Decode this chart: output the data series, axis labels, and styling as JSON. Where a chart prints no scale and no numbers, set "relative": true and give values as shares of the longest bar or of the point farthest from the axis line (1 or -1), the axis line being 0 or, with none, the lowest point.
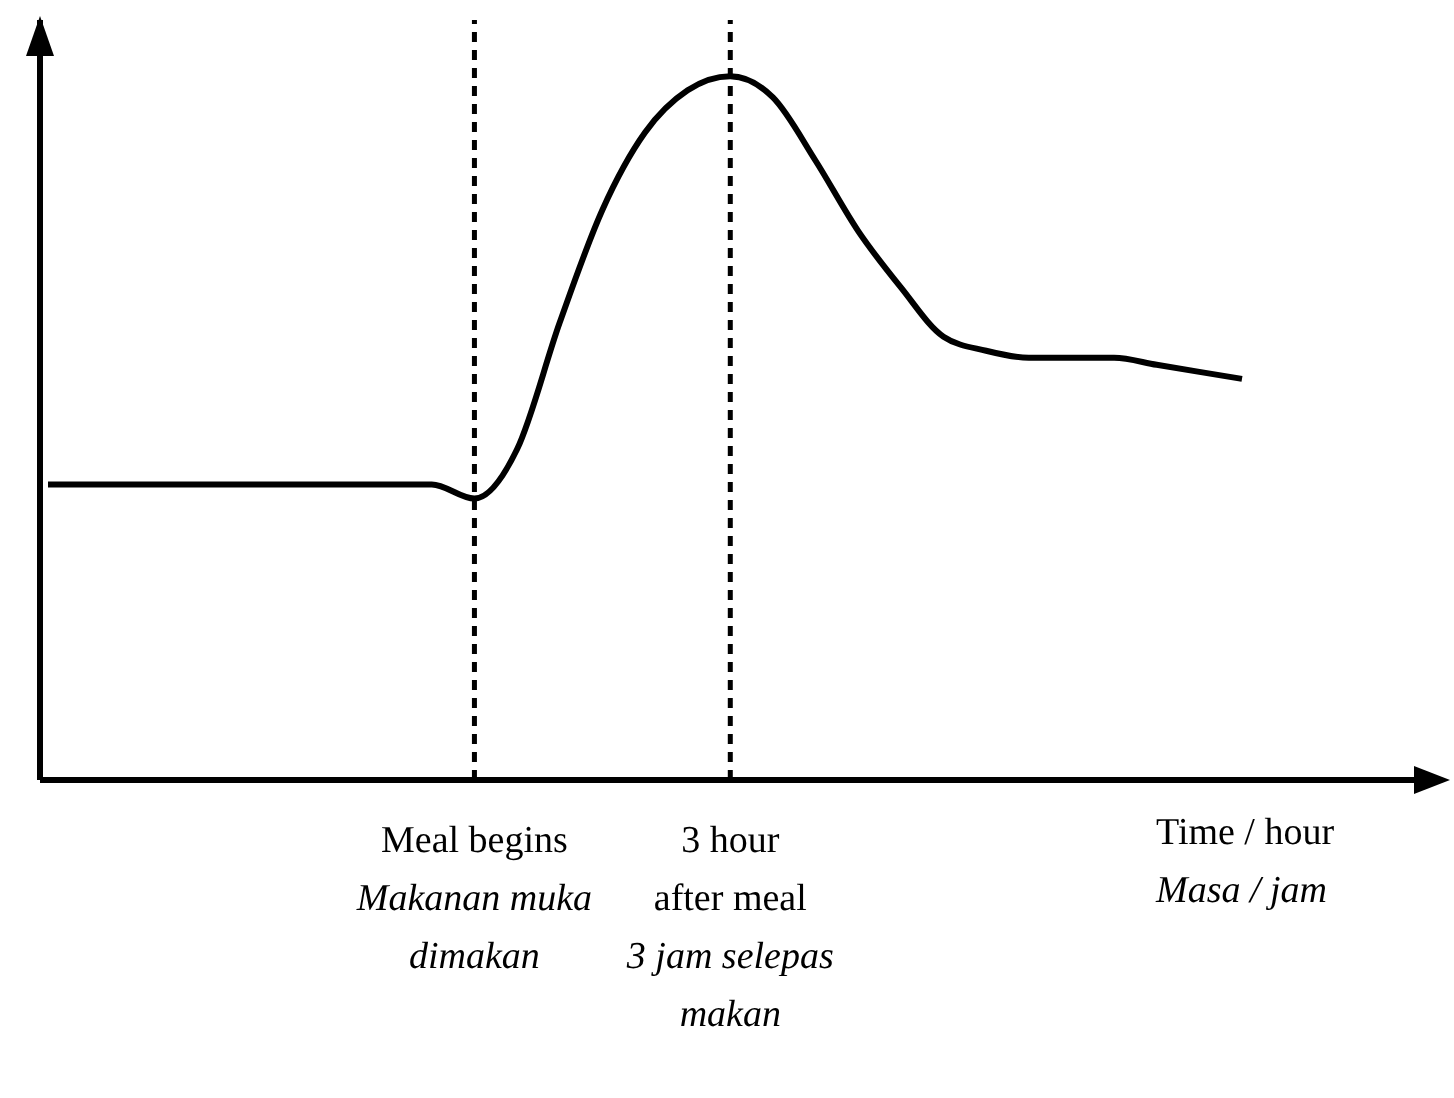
{
  "chart_data": {
    "type": "line",
    "relative": true,
    "xlabel": "Time / hour\nMasa / jam",
    "color": "#000000",
    "categories": [
      null,
      null,
      null,
      null,
      null,
      null,
      null,
      null,
      null,
      null,
      "Meal begins\nMakanan muka dimakan",
      null,
      null,
      null,
      null,
      null,
      "3 hour after meal\n3 jam selepas makan",
      null,
      null,
      null,
      null,
      null,
      null,
      null,
      null,
      null,
      null,
      null,
      null
    ],
    "values": [
      0.42,
      0.42,
      0.42,
      0.42,
      0.42,
      0.42,
      0.42,
      0.42,
      0.42,
      0.42,
      0.4,
      0.47,
      0.65,
      0.81,
      0.92,
      0.98,
      1,
      0.97,
      0.88,
      0.78,
      0.7,
      0.63,
      0.61,
      0.6,
      0.6,
      0.6,
      0.59,
      0.58,
      0.57
    ],
    "ref_lines": [
      {
        "axis": "x",
        "value": "Meal begins\nMakanan muka dimakan",
        "color": "#000000",
        "line_style": "dashed"
      },
      {
        "axis": "x",
        "value": "3 hour after meal\n3 jam selepas makan",
        "color": "#000000",
        "line_style": "dashed"
      }
    ]
  }
}
